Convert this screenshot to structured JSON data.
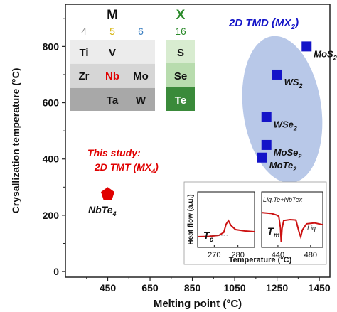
{
  "chart_data": [
    {
      "type": "scatter",
      "xlabel": "Melting point (°C)",
      "ylabel": "Crysallization temperature (°C)",
      "xlim": [
        250,
        1500
      ],
      "ylim": [
        -20,
        950
      ],
      "xticks": [
        450,
        650,
        850,
        1050,
        1250,
        1450
      ],
      "yticks": [
        0,
        200,
        400,
        600,
        800
      ],
      "tick_labels_x": [
        "450",
        "650",
        "850",
        "1050",
        "1250",
        "1450"
      ],
      "tick_labels_y": [
        "0",
        "200",
        "400",
        "600",
        "800"
      ],
      "series": [
        {
          "name": "2D TMD (MX2)",
          "marker": "square",
          "color": "#1414c8",
          "points": [
            {
              "label": "MoS2",
              "x": 1390,
              "y": 800
            },
            {
              "label": "WS2",
              "x": 1250,
              "y": 700
            },
            {
              "label": "WSe2",
              "x": 1200,
              "y": 550
            },
            {
              "label": "MoSe2",
              "x": 1200,
              "y": 450
            },
            {
              "label": "MoTe2",
              "x": 1180,
              "y": 405
            }
          ]
        },
        {
          "name": "2D TMT (MX4)",
          "marker": "pentagon",
          "color": "#e00000",
          "points": [
            {
              "label": "NbTe4",
              "x": 450,
              "y": 275
            }
          ]
        }
      ]
    },
    {
      "type": "line",
      "panel": "left",
      "ylabel": "Heat flow (a.u.)",
      "xticks": [
        270,
        280
      ],
      "xlim": [
        263,
        287
      ],
      "marker_label": "Tc",
      "series": [
        {
          "color": "#cc1111",
          "points": [
            [
              263,
              0.1
            ],
            [
              268,
              0.11
            ],
            [
              272,
              0.14
            ],
            [
              274,
              0.22
            ],
            [
              275,
              0.45
            ],
            [
              276,
              0.55
            ],
            [
              277,
              0.42
            ],
            [
              279,
              0.3
            ],
            [
              283,
              0.26
            ],
            [
              287,
              0.24
            ]
          ]
        }
      ]
    },
    {
      "type": "line",
      "panel": "right",
      "xlabel": "Temperature (°C)",
      "xticks": [
        440,
        480
      ],
      "xlim": [
        420,
        495
      ],
      "marker_label": "Tm",
      "annotation": "Liq.Te+NbTex",
      "annotation_right": "Liq.",
      "series": [
        {
          "color": "#cc1111",
          "points": [
            [
              420,
              0.62
            ],
            [
              432,
              0.6
            ],
            [
              438,
              0.57
            ],
            [
              441,
              0.54
            ],
            [
              443,
              0.3
            ],
            [
              444,
              0.0
            ],
            [
              445,
              0.28
            ],
            [
              447,
              0.45
            ],
            [
              455,
              0.47
            ],
            [
              462,
              0.46
            ],
            [
              466,
              0.2
            ],
            [
              468,
              0.1
            ],
            [
              470,
              0.25
            ],
            [
              475,
              0.38
            ],
            [
              485,
              0.4
            ],
            [
              495,
              0.36
            ]
          ]
        }
      ]
    }
  ],
  "text": {
    "tmd_title": "2D TMD (MX",
    "tmd_sub": "2",
    "tmd_close": ")",
    "study_line1": "This study:",
    "study_line2": "2D TMT (MX",
    "study_sub": "4",
    "study_close": ")",
    "nbte_main": "NbTe",
    "nbte_sub": "4",
    "m_header": "M",
    "x_header": "X"
  },
  "periodic_table": {
    "m_groups": [
      "4",
      "5",
      "6"
    ],
    "x_groups": [
      "16"
    ],
    "m_group_colors": [
      "#8a8a8a",
      "#d4b000",
      "#3a7fc1"
    ],
    "x_group_color": "#2a8a2a",
    "rows": [
      {
        "m": [
          "Ti",
          "V",
          ""
        ],
        "x": "S"
      },
      {
        "m": [
          "Zr",
          "Nb",
          "Mo"
        ],
        "x": "Se"
      },
      {
        "m": [
          "",
          "Ta",
          "W"
        ],
        "x": "Te"
      }
    ],
    "highlight": "Nb",
    "highlight_color": "#e00000"
  },
  "colors": {
    "tmd": "#1414c8",
    "tmt": "#e00000",
    "ellipse": "#b8c8e8",
    "curve": "#cc1111"
  }
}
